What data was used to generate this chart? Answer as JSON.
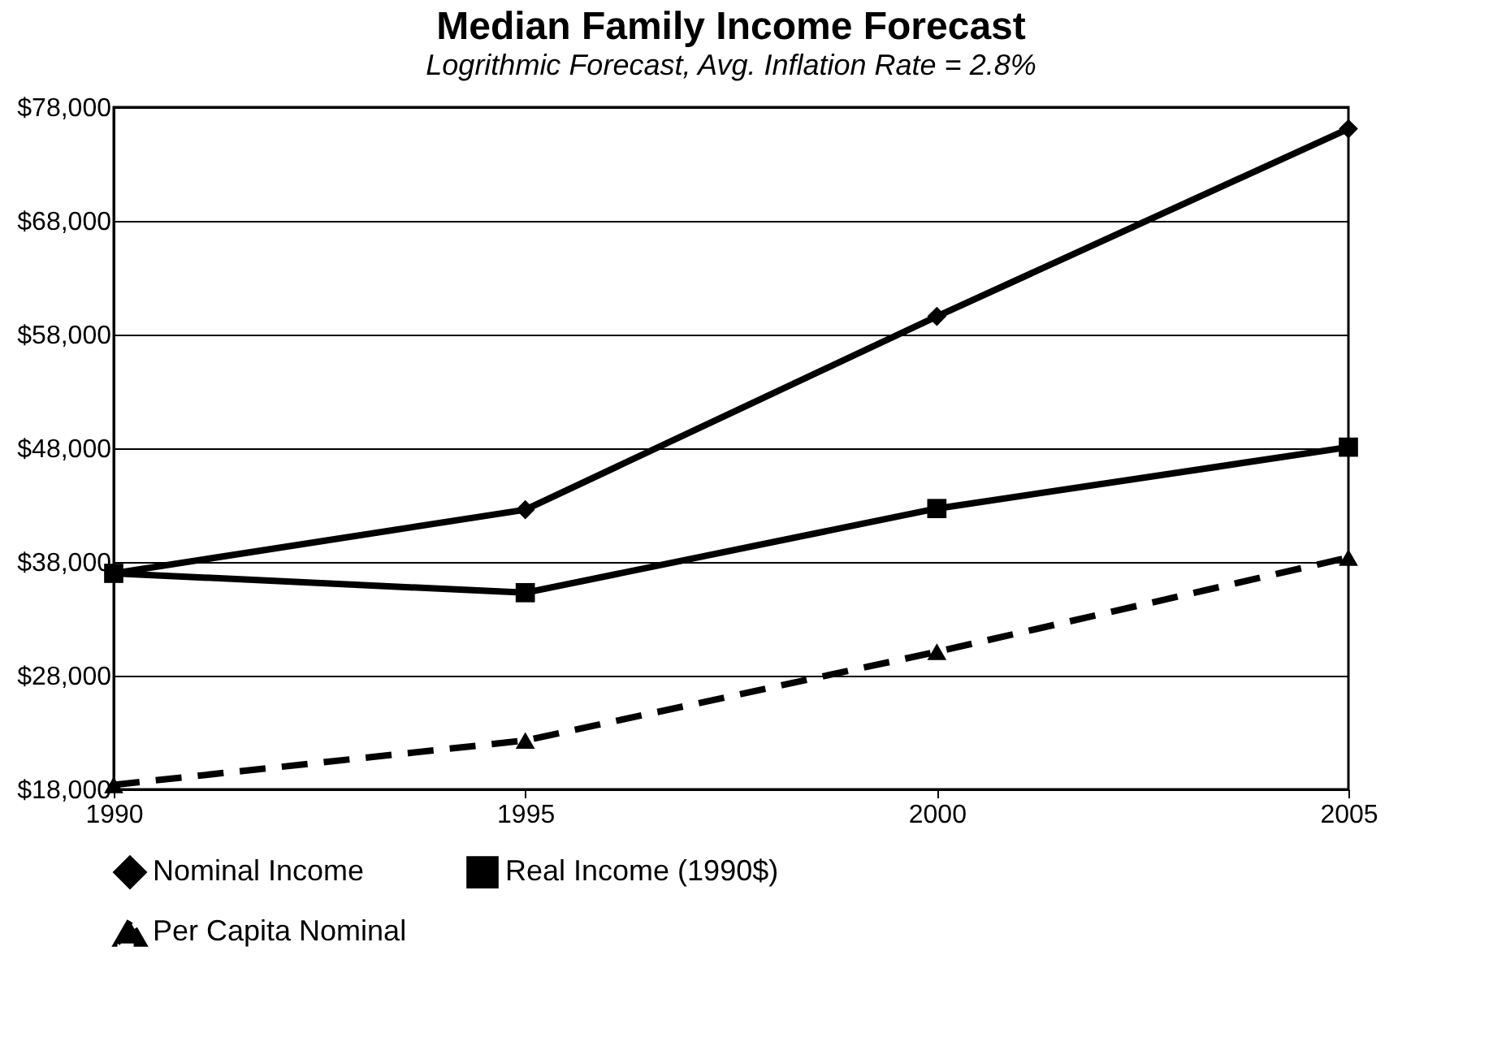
{
  "chart_data": {
    "type": "line",
    "title": "Median Family Income Forecast",
    "subtitle": "Logrithmic Forecast, Avg. Inflation Rate = 2.8%",
    "x": [
      1990,
      1995,
      2000,
      2005
    ],
    "xlim": [
      1990,
      2005
    ],
    "xticks": [
      1990,
      1995,
      2000,
      2005
    ],
    "ylim": [
      18000,
      78000
    ],
    "yticks": [
      {
        "value": 18000,
        "label": "$18,000"
      },
      {
        "value": 28000,
        "label": "$28,000"
      },
      {
        "value": 38000,
        "label": "$38,000"
      },
      {
        "value": 48000,
        "label": "$48,000"
      },
      {
        "value": 58000,
        "label": "$58,000"
      },
      {
        "value": 68000,
        "label": "$68,000"
      },
      {
        "value": 78000,
        "label": "$78,000"
      }
    ],
    "grid": "y",
    "legend": "bottom",
    "series": [
      {
        "name": "Nominal Income",
        "color": "#000000",
        "marker": "diamond",
        "line_style": "solid",
        "values": [
          37000,
          42600,
          59600,
          76100
        ]
      },
      {
        "name": "Real Income (1990$)",
        "color": "#000000",
        "marker": "square",
        "line_style": "solid",
        "values": [
          37000,
          35300,
          42700,
          48100
        ]
      },
      {
        "name": "Per Capita Nominal",
        "color": "#000000",
        "marker": "triangle",
        "line_style": "dashed",
        "values": [
          18400,
          22300,
          30100,
          38400
        ]
      }
    ]
  }
}
